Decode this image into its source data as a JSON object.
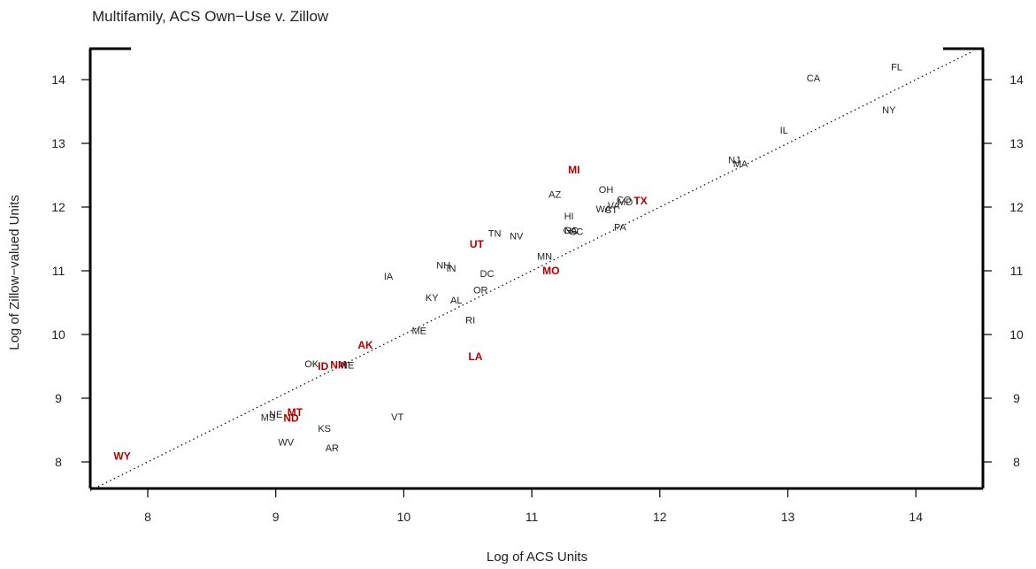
{
  "chart_data": {
    "type": "scatter",
    "title": "Multifamily, ACS Own−Use v. Zillow",
    "xlabel": "Log of ACS Units",
    "ylabel": "Log of Zillow−valued Units",
    "xlim": [
      7.55,
      14.45
    ],
    "ylim": [
      7.55,
      14.45
    ],
    "xticks": [
      "8",
      "9",
      "10",
      "11",
      "12",
      "13",
      "14"
    ],
    "yticks": [
      "8",
      "9",
      "10",
      "11",
      "12",
      "13",
      "14"
    ],
    "reference_line": "y = x (dotted)",
    "colors": {
      "normal": "#222222",
      "highlight": "#b30000"
    },
    "points": [
      {
        "label": "CA",
        "x": 13.2,
        "y": 14.03,
        "highlight": false
      },
      {
        "label": "FL",
        "x": 13.85,
        "y": 14.2,
        "highlight": false
      },
      {
        "label": "NY",
        "x": 13.79,
        "y": 13.53,
        "highlight": false
      },
      {
        "label": "IL",
        "x": 12.97,
        "y": 13.21,
        "highlight": false
      },
      {
        "label": "NJ",
        "x": 12.58,
        "y": 12.74,
        "highlight": false
      },
      {
        "label": "MA",
        "x": 12.63,
        "y": 12.68,
        "highlight": false
      },
      {
        "label": "MI",
        "x": 11.33,
        "y": 12.58,
        "highlight": true
      },
      {
        "label": "OH",
        "x": 11.58,
        "y": 12.28,
        "highlight": false
      },
      {
        "label": "AZ",
        "x": 11.18,
        "y": 12.2,
        "highlight": false
      },
      {
        "label": "CO",
        "x": 11.72,
        "y": 12.12,
        "highlight": false
      },
      {
        "label": "TX",
        "x": 11.85,
        "y": 12.1,
        "highlight": true
      },
      {
        "label": "MD",
        "x": 11.73,
        "y": 12.08,
        "highlight": false
      },
      {
        "label": "VA",
        "x": 11.64,
        "y": 12.03,
        "highlight": false
      },
      {
        "label": "WA",
        "x": 11.56,
        "y": 11.97,
        "highlight": false
      },
      {
        "label": "CT",
        "x": 11.62,
        "y": 11.96,
        "highlight": false
      },
      {
        "label": "HI",
        "x": 11.29,
        "y": 11.86,
        "highlight": false
      },
      {
        "label": "PA",
        "x": 11.69,
        "y": 11.69,
        "highlight": false
      },
      {
        "label": "GA",
        "x": 11.3,
        "y": 11.64,
        "highlight": false
      },
      {
        "label": "NC",
        "x": 11.31,
        "y": 11.63,
        "highlight": false
      },
      {
        "label": "SC",
        "x": 11.35,
        "y": 11.62,
        "highlight": false
      },
      {
        "label": "TN",
        "x": 10.71,
        "y": 11.59,
        "highlight": false
      },
      {
        "label": "NV",
        "x": 10.88,
        "y": 11.55,
        "highlight": false
      },
      {
        "label": "UT",
        "x": 10.57,
        "y": 11.42,
        "highlight": true
      },
      {
        "label": "MN",
        "x": 11.1,
        "y": 11.23,
        "highlight": false
      },
      {
        "label": "NH",
        "x": 10.31,
        "y": 11.09,
        "highlight": false
      },
      {
        "label": "IN",
        "x": 10.37,
        "y": 11.04,
        "highlight": false
      },
      {
        "label": "MO",
        "x": 11.15,
        "y": 11.0,
        "highlight": true
      },
      {
        "label": "DC",
        "x": 10.65,
        "y": 10.96,
        "highlight": false
      },
      {
        "label": "IA",
        "x": 9.88,
        "y": 10.92,
        "highlight": false
      },
      {
        "label": "OR",
        "x": 10.6,
        "y": 10.7,
        "highlight": false
      },
      {
        "label": "KY",
        "x": 10.22,
        "y": 10.58,
        "highlight": false
      },
      {
        "label": "AL",
        "x": 10.41,
        "y": 10.54,
        "highlight": false
      },
      {
        "label": "RI",
        "x": 10.52,
        "y": 10.23,
        "highlight": false
      },
      {
        "label": "ME",
        "x": 10.12,
        "y": 10.06,
        "highlight": false
      },
      {
        "label": "AK",
        "x": 9.7,
        "y": 9.83,
        "highlight": true
      },
      {
        "label": "LA",
        "x": 10.56,
        "y": 9.65,
        "highlight": true
      },
      {
        "label": "OK",
        "x": 9.28,
        "y": 9.54,
        "highlight": false
      },
      {
        "label": "ID",
        "x": 9.37,
        "y": 9.5,
        "highlight": true
      },
      {
        "label": "NM",
        "x": 9.49,
        "y": 9.52,
        "highlight": true
      },
      {
        "label": "NE",
        "x": 9.56,
        "y": 9.52,
        "highlight": false
      },
      {
        "label": "VT",
        "x": 9.95,
        "y": 8.71,
        "highlight": false
      },
      {
        "label": "MT",
        "x": 9.15,
        "y": 8.78,
        "highlight": true
      },
      {
        "label": "NE",
        "x": 9.0,
        "y": 8.75,
        "highlight": false
      },
      {
        "label": "MS",
        "x": 8.94,
        "y": 8.7,
        "highlight": false
      },
      {
        "label": "ND",
        "x": 9.12,
        "y": 8.69,
        "highlight": true
      },
      {
        "label": "KS",
        "x": 9.38,
        "y": 8.53,
        "highlight": false
      },
      {
        "label": "WV",
        "x": 9.08,
        "y": 8.31,
        "highlight": false
      },
      {
        "label": "AR",
        "x": 9.44,
        "y": 8.22,
        "highlight": false
      },
      {
        "label": "WY",
        "x": 7.8,
        "y": 8.09,
        "highlight": true
      }
    ]
  }
}
